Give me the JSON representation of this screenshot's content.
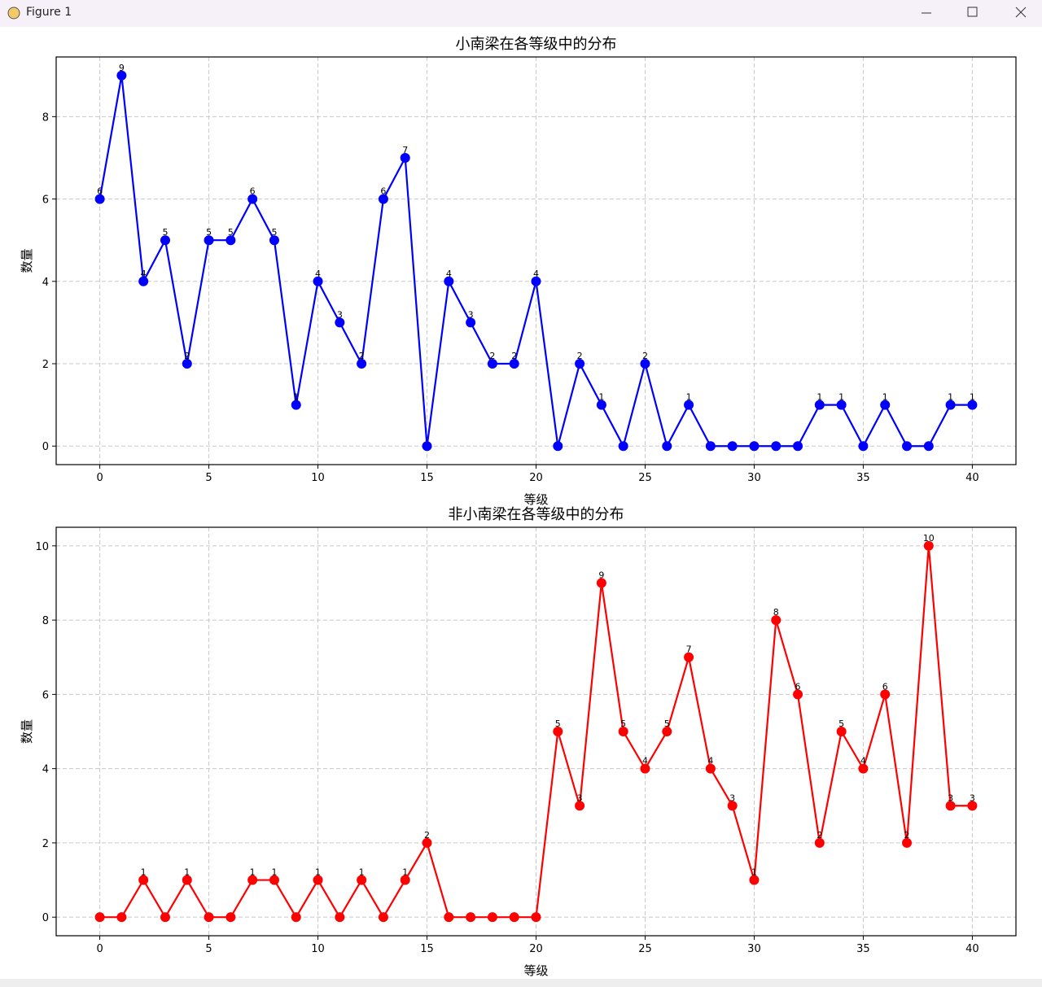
{
  "window": {
    "title": "Figure 1"
  },
  "chart_data": [
    {
      "type": "line",
      "title": "小南梁在各等级中的分布",
      "xlabel": "等级",
      "ylabel": "数量",
      "x": [
        0,
        1,
        2,
        3,
        4,
        5,
        6,
        7,
        8,
        9,
        10,
        11,
        12,
        13,
        14,
        15,
        16,
        17,
        18,
        19,
        20,
        21,
        22,
        23,
        24,
        25,
        26,
        27,
        28,
        29,
        30,
        31,
        32,
        33,
        34,
        35,
        36,
        37,
        38,
        39,
        40
      ],
      "values": [
        6,
        9,
        4,
        5,
        2,
        5,
        5,
        6,
        5,
        1,
        4,
        3,
        2,
        6,
        7,
        0,
        4,
        3,
        2,
        2,
        4,
        0,
        2,
        1,
        0,
        2,
        0,
        1,
        0,
        0,
        0,
        0,
        0,
        1,
        1,
        0,
        1,
        0,
        0,
        1,
        1
      ],
      "color": "#0000ff",
      "xlim": [
        -2,
        42
      ],
      "ylim": [
        -0.45,
        9.45
      ],
      "xticks": [
        0,
        5,
        10,
        15,
        20,
        25,
        30,
        35,
        40
      ],
      "yticks": [
        0,
        2,
        4,
        6,
        8
      ],
      "grid": true
    },
    {
      "type": "line",
      "title": "非小南梁在各等级中的分布",
      "xlabel": "等级",
      "ylabel": "数量",
      "x": [
        0,
        1,
        2,
        3,
        4,
        5,
        6,
        7,
        8,
        9,
        10,
        11,
        12,
        13,
        14,
        15,
        16,
        17,
        18,
        19,
        20,
        21,
        22,
        23,
        24,
        25,
        26,
        27,
        28,
        29,
        30,
        31,
        32,
        33,
        34,
        35,
        36,
        37,
        38,
        39,
        40
      ],
      "values": [
        0,
        0,
        1,
        0,
        1,
        0,
        0,
        1,
        1,
        0,
        1,
        0,
        1,
        0,
        1,
        2,
        0,
        0,
        0,
        0,
        0,
        5,
        3,
        9,
        5,
        4,
        5,
        7,
        4,
        3,
        1,
        8,
        6,
        2,
        5,
        4,
        6,
        2,
        10,
        3,
        3
      ],
      "color": "#ff0000",
      "xlim": [
        -2,
        42
      ],
      "ylim": [
        -0.5,
        10.5
      ],
      "xticks": [
        0,
        5,
        10,
        15,
        20,
        25,
        30,
        35,
        40
      ],
      "yticks": [
        0,
        2,
        4,
        6,
        8,
        10
      ],
      "grid": true
    }
  ]
}
